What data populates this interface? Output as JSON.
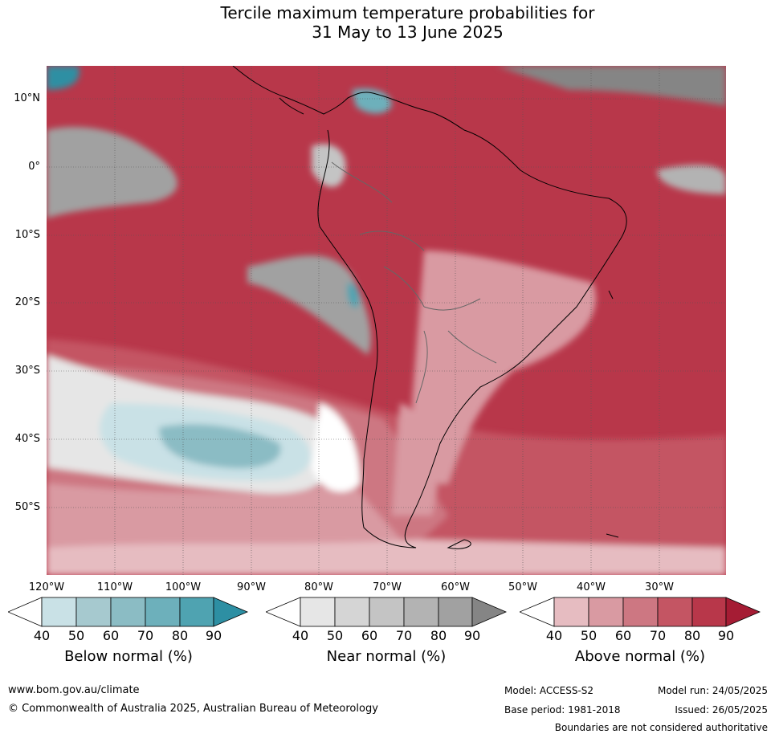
{
  "title": {
    "line1": "Tercile maximum temperature probabilities for",
    "line2": "31 May to 13 June 2025"
  },
  "map": {
    "lat_labels": [
      "10°N",
      "0°",
      "10°S",
      "20°S",
      "30°S",
      "40°S",
      "50°S"
    ],
    "lon_labels": [
      "120°W",
      "110°W",
      "100°W",
      "90°W",
      "80°W",
      "70°W",
      "60°W",
      "50°W",
      "40°W",
      "30°W"
    ]
  },
  "colorbars": [
    {
      "title": "Below normal (%)",
      "ticks": [
        "40",
        "50",
        "60",
        "70",
        "80",
        "90"
      ],
      "colors": [
        "#ffffff",
        "#c9e1e6",
        "#a6c9cf",
        "#8bbcc4",
        "#6db0bb",
        "#4fa3b1",
        "#2d8fa3"
      ]
    },
    {
      "title": "Near normal (%)",
      "ticks": [
        "40",
        "50",
        "60",
        "70",
        "80",
        "90"
      ],
      "colors": [
        "#ffffff",
        "#e6e6e6",
        "#d5d5d5",
        "#c4c4c4",
        "#b3b3b3",
        "#a1a1a1",
        "#858585"
      ]
    },
    {
      "title": "Above normal (%)",
      "ticks": [
        "40",
        "50",
        "60",
        "70",
        "80",
        "90"
      ],
      "colors": [
        "#ffffff",
        "#e6bcc1",
        "#d99aa2",
        "#cd7782",
        "#c45563",
        "#b8374a",
        "#a51c34"
      ]
    }
  ],
  "footer": {
    "website": "www.bom.gov.au/climate",
    "copyright": "© Commonwealth of Australia 2025, Australian Bureau of Meteorology",
    "model": "Model: ACCESS-S2",
    "model_run": "Model run: 24/05/2025",
    "base_period": "Base period: 1981-2018",
    "issued": "Issued: 26/05/2025",
    "disclaimer": "Boundaries are not considered authoritative"
  }
}
